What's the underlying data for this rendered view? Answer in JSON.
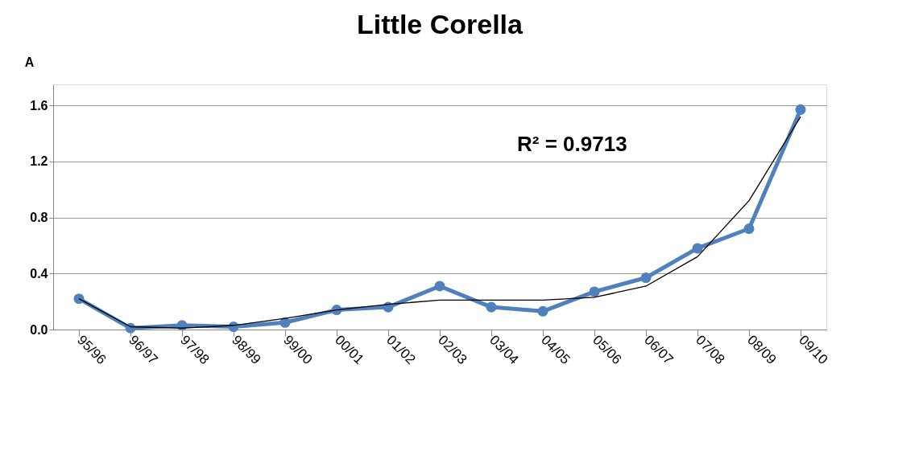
{
  "chart_data": {
    "type": "line",
    "title": "Little Corella",
    "ylabel": "A",
    "categories": [
      "95/96",
      "96/97",
      "97/98",
      "98/99",
      "99/00",
      "00/01",
      "01/02",
      "02/03",
      "03/04",
      "04/05",
      "05/06",
      "06/07",
      "07/08",
      "08/09",
      "09/10"
    ],
    "series": [
      {
        "color": "#4f81bd",
        "values": [
          0.22,
          0.01,
          0.03,
          0.02,
          0.05,
          0.14,
          0.16,
          0.31,
          0.16,
          0.13,
          0.27,
          0.37,
          0.58,
          0.72,
          1.57
        ]
      },
      {
        "color": "#000000",
        "marker": "none",
        "values": [
          0.22,
          0.02,
          0.01,
          0.03,
          0.08,
          0.14,
          0.18,
          0.21,
          0.21,
          0.21,
          0.23,
          0.31,
          0.52,
          0.92,
          1.52
        ]
      }
    ],
    "ylim": [
      0,
      1.75
    ],
    "yticks": [
      {
        "value": 0,
        "label": "0.0"
      },
      {
        "value": 0.4,
        "label": "0.4"
      },
      {
        "value": 0.8,
        "label": "0.8"
      },
      {
        "value": 1.2,
        "label": "1.2"
      },
      {
        "value": 1.6,
        "label": "1.6"
      }
    ],
    "grid": "y",
    "marker": "circle",
    "line_style": "solid",
    "annotations": [
      "R² = 0.9713"
    ]
  }
}
